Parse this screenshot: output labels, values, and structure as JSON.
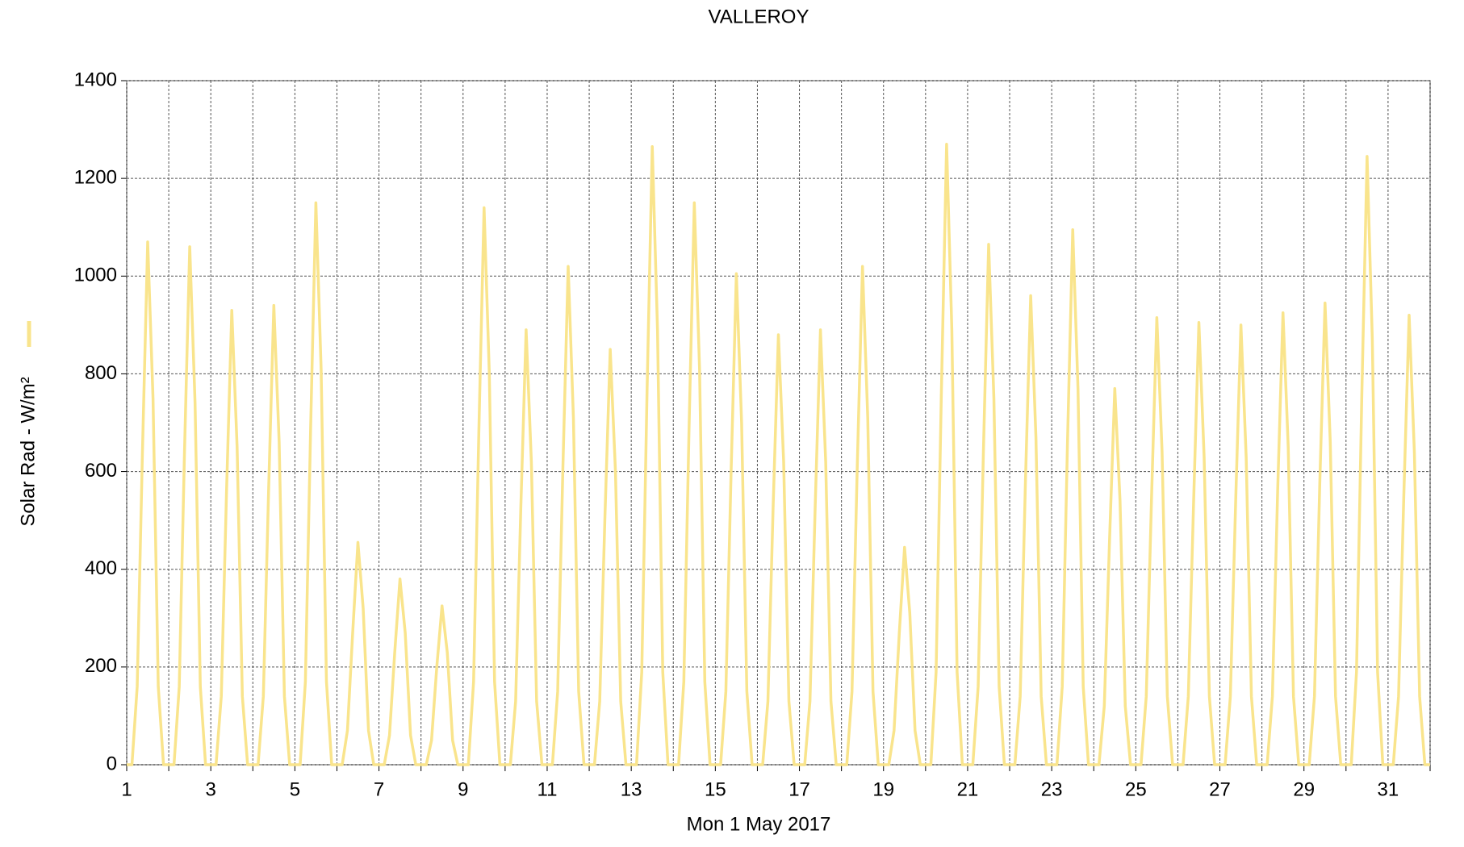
{
  "chart_data": {
    "type": "line",
    "title": "VALLEROY",
    "x_label": "Mon 1 May 2017",
    "xlim": [
      1,
      32
    ],
    "xticks": [
      1,
      3,
      5,
      7,
      9,
      11,
      13,
      15,
      17,
      19,
      21,
      23,
      25,
      27,
      29,
      31
    ],
    "xminor": [
      2,
      4,
      6,
      8,
      10,
      12,
      14,
      16,
      18,
      20,
      22,
      24,
      26,
      28,
      30,
      32
    ],
    "ylim": [
      0,
      1400
    ],
    "yticks": [
      0,
      200,
      400,
      600,
      800,
      1000,
      1200,
      1400
    ],
    "grid": true,
    "x": [
      1,
      1.125,
      1.25,
      1.375,
      1.5,
      1.625,
      1.75,
      1.875,
      2,
      2.125,
      2.25,
      2.375,
      2.5,
      2.625,
      2.75,
      2.875,
      3,
      3.125,
      3.25,
      3.375,
      3.5,
      3.625,
      3.75,
      3.875,
      4,
      4.125,
      4.25,
      4.375,
      4.5,
      4.625,
      4.75,
      4.875,
      5,
      5.125,
      5.25,
      5.375,
      5.5,
      5.625,
      5.75,
      5.875,
      6,
      6.125,
      6.25,
      6.375,
      6.5,
      6.625,
      6.75,
      6.875,
      7,
      7.125,
      7.25,
      7.375,
      7.5,
      7.625,
      7.75,
      7.875,
      8,
      8.125,
      8.25,
      8.375,
      8.5,
      8.625,
      8.75,
      8.875,
      9,
      9.125,
      9.25,
      9.375,
      9.5,
      9.625,
      9.75,
      9.875,
      10,
      10.125,
      10.25,
      10.375,
      10.5,
      10.625,
      10.75,
      10.875,
      11,
      11.125,
      11.25,
      11.375,
      11.5,
      11.625,
      11.75,
      11.875,
      12,
      12.125,
      12.25,
      12.375,
      12.5,
      12.625,
      12.75,
      12.875,
      13,
      13.125,
      13.25,
      13.375,
      13.5,
      13.625,
      13.75,
      13.875,
      14,
      14.125,
      14.25,
      14.375,
      14.5,
      14.625,
      14.75,
      14.875,
      15,
      15.125,
      15.25,
      15.375,
      15.5,
      15.625,
      15.75,
      15.875,
      16,
      16.125,
      16.25,
      16.375,
      16.5,
      16.625,
      16.75,
      16.875,
      17,
      17.125,
      17.25,
      17.375,
      17.5,
      17.625,
      17.75,
      17.875,
      18,
      18.125,
      18.25,
      18.375,
      18.5,
      18.625,
      18.75,
      18.875,
      19,
      19.125,
      19.25,
      19.375,
      19.5,
      19.625,
      19.75,
      19.875,
      20,
      20.125,
      20.25,
      20.375,
      20.5,
      20.625,
      20.75,
      20.875,
      21,
      21.125,
      21.25,
      21.375,
      21.5,
      21.625,
      21.75,
      21.875,
      22,
      22.125,
      22.25,
      22.375,
      22.5,
      22.625,
      22.75,
      22.875,
      23,
      23.125,
      23.25,
      23.375,
      23.5,
      23.625,
      23.75,
      23.875,
      24,
      24.125,
      24.25,
      24.375,
      24.5,
      24.625,
      24.75,
      24.875,
      25,
      25.125,
      25.25,
      25.375,
      25.5,
      25.625,
      25.75,
      25.875,
      26,
      26.125,
      26.25,
      26.375,
      26.5,
      26.625,
      26.75,
      26.875,
      27,
      27.125,
      27.25,
      27.375,
      27.5,
      27.625,
      27.75,
      27.875,
      28,
      28.125,
      28.25,
      28.375,
      28.5,
      28.625,
      28.75,
      28.875,
      29,
      29.125,
      29.25,
      29.375,
      29.5,
      29.625,
      29.75,
      29.875,
      30,
      30.125,
      30.25,
      30.375,
      30.5,
      30.625,
      30.75,
      30.875,
      31,
      31.125,
      31.25,
      31.375,
      31.5,
      31.625,
      31.75,
      31.875,
      32
    ],
    "series": [
      {
        "name": "Solar Rad - W/m²",
        "color": "#f9e48c",
        "values": [
          0,
          0,
          160,
          640,
          1070,
          750,
          160,
          0,
          0,
          0,
          160,
          640,
          1060,
          740,
          160,
          0,
          0,
          0,
          140,
          560,
          930,
          650,
          140,
          0,
          0,
          0,
          140,
          560,
          940,
          660,
          140,
          0,
          0,
          0,
          170,
          690,
          1150,
          810,
          170,
          0,
          0,
          0,
          70,
          270,
          455,
          320,
          70,
          0,
          0,
          0,
          60,
          230,
          380,
          270,
          60,
          0,
          0,
          0,
          50,
          200,
          325,
          230,
          50,
          0,
          0,
          0,
          170,
          680,
          1140,
          800,
          170,
          0,
          0,
          0,
          130,
          530,
          890,
          620,
          130,
          0,
          0,
          0,
          150,
          610,
          1020,
          710,
          150,
          0,
          0,
          0,
          130,
          510,
          850,
          600,
          130,
          0,
          0,
          0,
          190,
          760,
          1265,
          890,
          190,
          0,
          0,
          0,
          170,
          690,
          1150,
          810,
          170,
          0,
          0,
          0,
          150,
          600,
          1005,
          700,
          150,
          0,
          0,
          0,
          130,
          530,
          880,
          620,
          130,
          0,
          0,
          0,
          130,
          530,
          890,
          620,
          130,
          0,
          0,
          0,
          150,
          610,
          1020,
          710,
          150,
          0,
          0,
          0,
          70,
          270,
          445,
          310,
          70,
          0,
          0,
          0,
          190,
          760,
          1270,
          890,
          190,
          0,
          0,
          0,
          160,
          640,
          1065,
          750,
          160,
          0,
          0,
          0,
          140,
          580,
          960,
          670,
          140,
          0,
          0,
          0,
          160,
          660,
          1095,
          770,
          160,
          0,
          0,
          0,
          120,
          460,
          770,
          540,
          120,
          0,
          0,
          0,
          140,
          550,
          915,
          640,
          140,
          0,
          0,
          0,
          140,
          540,
          905,
          630,
          140,
          0,
          0,
          0,
          140,
          540,
          900,
          630,
          140,
          0,
          0,
          0,
          140,
          560,
          925,
          650,
          140,
          0,
          0,
          0,
          140,
          570,
          945,
          660,
          140,
          0,
          0,
          0,
          190,
          750,
          1245,
          870,
          190,
          0,
          0,
          0,
          140,
          550,
          920,
          640,
          140,
          0,
          0
        ]
      }
    ]
  }
}
